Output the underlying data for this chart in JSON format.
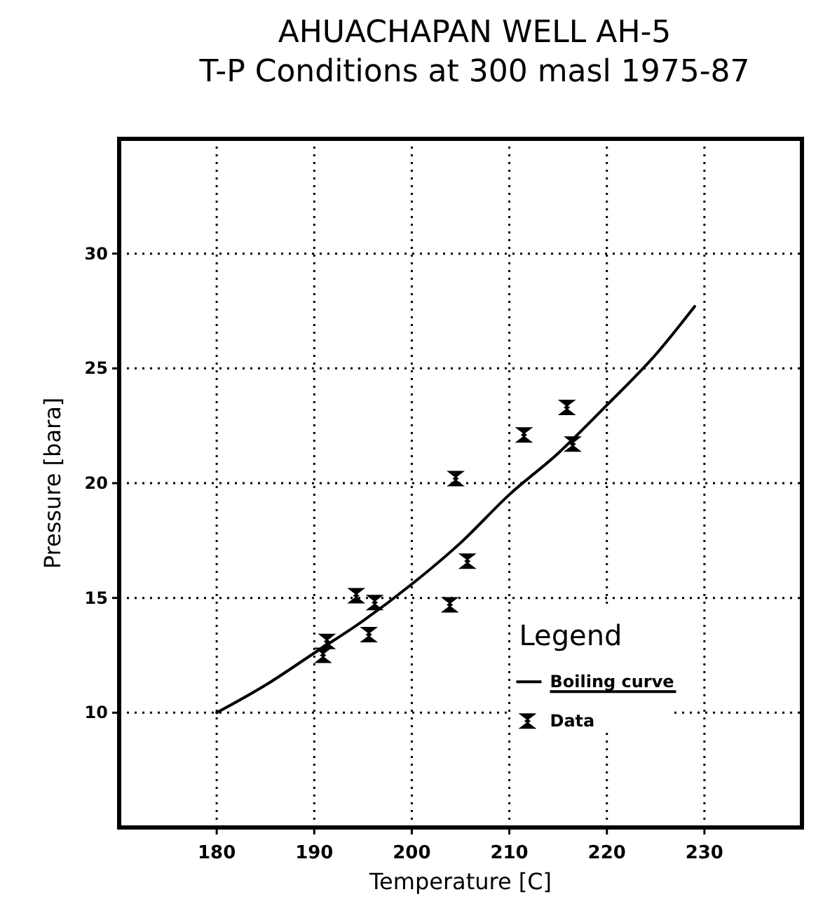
{
  "chart_data": {
    "type": "scatter",
    "title": "AHUACHAPAN WELL AH-5",
    "subtitle": "T-P Conditions at 300 masl 1975-87",
    "xlabel": "Temperature [C]",
    "ylabel": "Pressure [bara]",
    "xlim": [
      170,
      240
    ],
    "xticks": [
      180,
      190,
      200,
      210,
      220,
      230
    ],
    "ylim": [
      5,
      35
    ],
    "yticks": [
      10,
      15,
      20,
      25,
      30
    ],
    "grid": true,
    "legend": "bottom right",
    "legend_title": "Legend",
    "series": [
      {
        "name": "Boiling curve",
        "type": "line",
        "color": "#000000",
        "x": [
          180,
          185,
          190,
          195,
          200,
          205,
          210,
          215,
          220,
          225,
          229
        ],
        "values": [
          10,
          11.2,
          12.6,
          14.0,
          15.6,
          17.4,
          19.5,
          21.3,
          23.4,
          25.6,
          27.7
        ]
      },
      {
        "name": "Data",
        "color": "#000000",
        "x": [
          190.9,
          191.3,
          194.3,
          196.2,
          195.6,
          203.9,
          204.5,
          205.7,
          211.5,
          215.9,
          216.5
        ],
        "values": [
          12.5,
          13.1,
          15.1,
          14.8,
          13.4,
          14.7,
          20.2,
          16.6,
          22.1,
          23.3,
          21.7
        ]
      }
    ]
  }
}
